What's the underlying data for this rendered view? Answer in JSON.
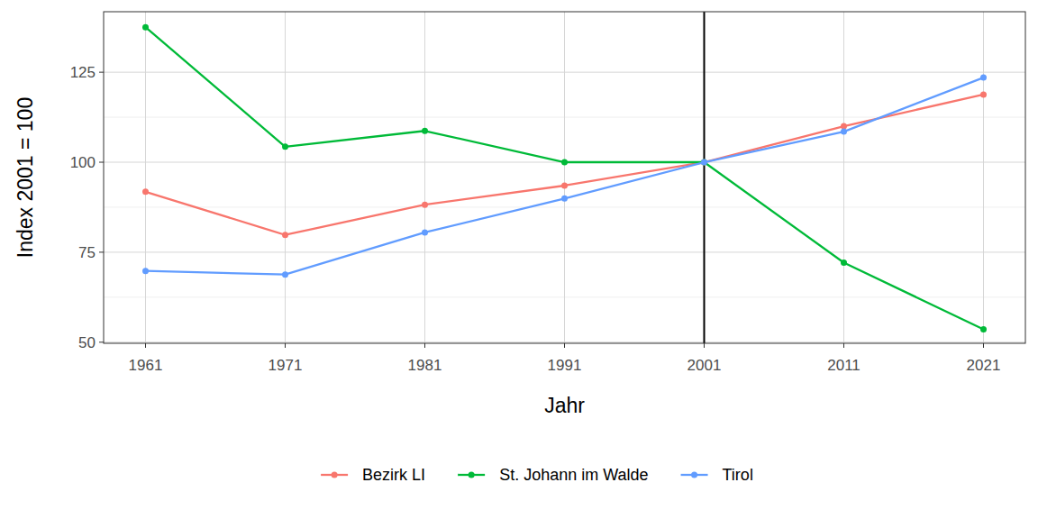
{
  "chart_data": {
    "type": "line",
    "x_label": "Jahr",
    "y_label": "Index 2001 = 100",
    "x": [
      1961,
      1971,
      1981,
      1991,
      2001,
      2011,
      2021
    ],
    "series": [
      {
        "name": "Bezirk LI",
        "color": "#F8766D",
        "marker": "circle",
        "values": [
          91.8,
          79.8,
          88.2,
          93.5,
          100,
          110,
          118.8
        ]
      },
      {
        "name": "St. Johann im Walde",
        "color": "#00BA38",
        "marker": "circle",
        "values": [
          137.5,
          104.3,
          108.7,
          100,
          100,
          72.1,
          53.6
        ]
      },
      {
        "name": "Tirol",
        "color": "#619CFF",
        "marker": "circle",
        "values": [
          69.8,
          68.8,
          80.5,
          89.9,
          100,
          108.5,
          123.5
        ]
      }
    ],
    "xlim": [
      1958,
      2024
    ],
    "ylim": [
      49.7,
      141.8
    ],
    "xticks": [
      1961,
      1971,
      1981,
      1991,
      2001,
      2011,
      2021
    ],
    "yticks": [
      50,
      75,
      100,
      125
    ],
    "vline": 2001,
    "grid": true,
    "legend": "bottom"
  }
}
